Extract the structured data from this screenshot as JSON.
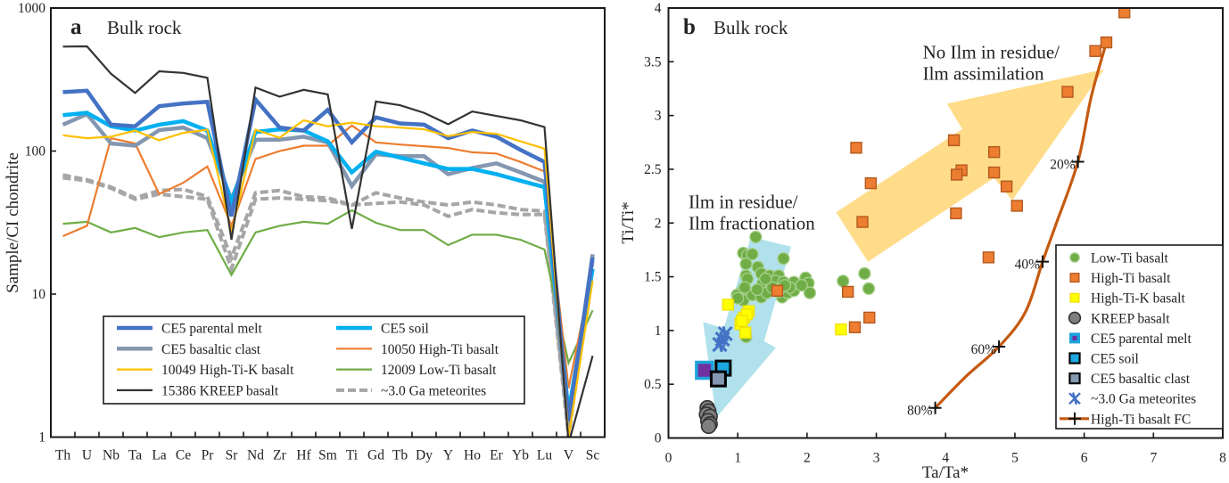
{
  "chart_data": [
    {
      "type": "line",
      "panel_label": "a",
      "title": "Bulk rock",
      "xlabel": "",
      "ylabel": "Sample/CI chondrite",
      "yscale": "log",
      "ylim": [
        1,
        1000
      ],
      "yticks": [
        1,
        10,
        100,
        1000
      ],
      "ytick_labels": [
        "1",
        "10",
        "100",
        "1000"
      ],
      "grid": false,
      "legend_position": "bottom-center",
      "categories": [
        "Th",
        "U",
        "Nb",
        "Ta",
        "La",
        "Ce",
        "Pr",
        "Sr",
        "Nd",
        "Zr",
        "Hf",
        "Sm",
        "Ti",
        "Gd",
        "Tb",
        "Dy",
        "Y",
        "Ho",
        "Er",
        "Yb",
        "Lu",
        "V",
        "Sc"
      ],
      "series": [
        {
          "name": "CE5 parental melt",
          "color": "#4472C4",
          "line": "thick",
          "values": [
            258,
            264,
            153,
            149,
            206,
            215,
            221,
            35,
            229,
            146,
            139,
            194,
            115,
            172,
            156,
            153,
            123,
            139,
            126,
            102,
            84,
            1.3,
            18
          ]
        },
        {
          "name": "CE5 soil",
          "color": "#00B0F0",
          "line": "thick",
          "values": [
            178,
            185,
            149,
            139,
            153,
            162,
            139,
            44,
            136,
            142,
            139,
            117,
            71,
            99,
            90,
            82,
            75,
            75,
            69,
            62,
            56,
            1.5,
            15
          ]
        },
        {
          "name": "CE5 basaltic clast",
          "color": "#8497B0",
          "line": "thick",
          "values": [
            153,
            181,
            113,
            109,
            140,
            146,
            123,
            46,
            120,
            120,
            126,
            115,
            57,
            95,
            92,
            92,
            69,
            76,
            82,
            71,
            61,
            1.2,
            19
          ]
        },
        {
          "name": "10050 High-Ti basalt",
          "color": "#ED7D31",
          "line": "thin",
          "values": [
            25.4,
            30,
            123,
            113,
            50,
            60,
            78,
            30,
            88,
            100,
            109,
            109,
            151,
            115,
            111,
            108,
            105,
            98,
            96,
            84,
            72,
            2.2,
            15
          ]
        },
        {
          "name": "10049 High-Ti-K basalt",
          "color": "#FFC000",
          "line": "thin",
          "values": [
            129,
            123,
            126,
            139,
            119,
            134,
            141,
            27,
            141,
            124,
            164,
            149,
            158,
            149,
            146,
            142,
            127,
            136,
            132,
            117,
            104,
            1.0,
            12.4
          ]
        },
        {
          "name": "12009 Low-Ti basalt",
          "color": "#70AD47",
          "line": "thin",
          "values": [
            31,
            32,
            27,
            29,
            25,
            27,
            28,
            13.6,
            27,
            30,
            32,
            31,
            38.5,
            31.5,
            28,
            28,
            22,
            26,
            26,
            24,
            20.5,
            3.3,
            7.7
          ]
        },
        {
          "name": "15386 KREEP basalt",
          "color": "#333333",
          "line": "thin",
          "values": [
            537,
            540,
            347,
            255,
            361,
            352,
            325,
            24,
            278,
            240,
            268,
            249,
            28.6,
            222,
            209,
            185,
            154,
            189,
            176,
            164,
            147,
            0.9,
            3.7
          ]
        },
        {
          "name": "~3.0 Ga meteorites",
          "color": "#A6A6A6",
          "line": "dashed",
          "values": [
            68,
            63,
            56,
            47,
            53,
            54,
            48,
            18,
            51,
            53,
            48,
            47,
            42,
            51,
            47,
            44,
            42,
            44,
            42,
            39,
            38,
            1.1,
            18
          ]
        },
        {
          "name": "~3.0 Ga meteorites",
          "color": "#A6A6A6",
          "line": "dashed",
          "in_legend": false,
          "values": [
            65,
            62,
            55,
            46,
            50,
            48,
            46,
            15,
            46,
            47,
            46,
            45,
            42,
            43,
            44,
            42,
            35,
            39,
            37,
            36,
            36,
            1.0,
            17
          ]
        }
      ]
    },
    {
      "type": "scatter",
      "panel_label": "b",
      "title": "Bulk rock",
      "xlabel": "Ta/Ta*",
      "ylabel": "Ti/Ti*",
      "xlim": [
        0,
        8
      ],
      "ylim": [
        0,
        4
      ],
      "xticks": [
        0,
        1,
        2,
        3,
        4,
        5,
        6,
        7,
        8
      ],
      "xtick_labels": [
        "0",
        "1",
        "2",
        "3",
        "4",
        "5",
        "6",
        "7",
        "8"
      ],
      "yticks": [
        0,
        0.5,
        1,
        1.5,
        2,
        2.5,
        3,
        3.5,
        4
      ],
      "ytick_labels": [
        "0",
        "0.5",
        "1",
        "1.5",
        "2",
        "2.5",
        "3",
        "3.5",
        "4"
      ],
      "grid": false,
      "legend_position": "bottom-right",
      "series": [
        {
          "name": "Low-Ti basalt",
          "marker": "circle",
          "fill": "#70AD47",
          "edge": "#A9D18E",
          "points": [
            [
              1.26,
              1.87
            ],
            [
              1.08,
              1.72
            ],
            [
              1.14,
              1.7
            ],
            [
              1.21,
              1.71
            ],
            [
              1.66,
              1.67
            ],
            [
              1.12,
              1.62
            ],
            [
              1.29,
              1.59
            ],
            [
              1.34,
              1.53
            ],
            [
              1.12,
              1.51
            ],
            [
              1.14,
              1.48
            ],
            [
              1.46,
              1.51
            ],
            [
              1.59,
              1.51
            ],
            [
              1.36,
              1.44
            ],
            [
              1.46,
              1.45
            ],
            [
              1.55,
              1.46
            ],
            [
              1.66,
              1.45
            ],
            [
              1.81,
              1.45
            ],
            [
              1.98,
              1.49
            ],
            [
              2.02,
              1.44
            ],
            [
              1.04,
              1.35
            ],
            [
              0.99,
              1.33
            ],
            [
              1.08,
              1.28
            ],
            [
              1.21,
              1.33
            ],
            [
              1.34,
              1.31
            ],
            [
              1.42,
              1.35
            ],
            [
              1.64,
              1.31
            ],
            [
              1.72,
              1.35
            ],
            [
              1.81,
              1.37
            ],
            [
              2.04,
              1.35
            ],
            [
              1.1,
              1.4
            ],
            [
              1.5,
              1.4
            ],
            [
              1.75,
              1.4
            ],
            [
              1.28,
              1.38
            ],
            [
              1.58,
              1.36
            ],
            [
              1.0,
              1.3
            ],
            [
              1.68,
              1.42
            ],
            [
              1.92,
              1.42
            ],
            [
              1.4,
              1.48
            ],
            [
              1.12,
              0.94
            ],
            [
              2.83,
              1.53
            ],
            [
              2.52,
              1.46
            ],
            [
              2.89,
              1.39
            ]
          ]
        },
        {
          "name": "High-Ti basalt",
          "marker": "square",
          "fill": "#ED7D31",
          "edge": "#B45A1E",
          "points": [
            [
              6.58,
              3.96
            ],
            [
              6.32,
              3.68
            ],
            [
              6.16,
              3.6
            ],
            [
              5.76,
              3.22
            ],
            [
              4.12,
              2.77
            ],
            [
              4.7,
              2.66
            ],
            [
              4.23,
              2.49
            ],
            [
              4.16,
              2.45
            ],
            [
              4.7,
              2.47
            ],
            [
              4.88,
              2.34
            ],
            [
              5.03,
              2.16
            ],
            [
              4.15,
              2.09
            ],
            [
              2.71,
              2.7
            ],
            [
              2.92,
              2.37
            ],
            [
              2.8,
              2.01
            ],
            [
              4.62,
              1.68
            ],
            [
              2.59,
              1.36
            ],
            [
              2.9,
              1.12
            ],
            [
              2.69,
              1.03
            ],
            [
              1.57,
              1.37
            ]
          ]
        },
        {
          "name": "High-Ti-K basalt",
          "marker": "square",
          "fill": "#FFFF00",
          "edge": "#F2E200",
          "points": [
            [
              0.86,
              1.24
            ],
            [
              1.16,
              1.18
            ],
            [
              1.09,
              1.12
            ],
            [
              1.04,
              1.06
            ],
            [
              1.11,
              0.98
            ],
            [
              1.13,
              1.15
            ],
            [
              1.06,
              1.09
            ],
            [
              2.49,
              1.01
            ]
          ]
        },
        {
          "name": "KREEP basalt",
          "marker": "circle-large",
          "fill": "#7F7F7F",
          "edge": "#333333",
          "points": [
            [
              0.56,
              0.28
            ],
            [
              0.58,
              0.25
            ],
            [
              0.55,
              0.22
            ],
            [
              0.6,
              0.2
            ],
            [
              0.57,
              0.16
            ],
            [
              0.6,
              0.13
            ],
            [
              0.58,
              0.11
            ]
          ]
        },
        {
          "name": "CE5 parental melt",
          "marker": "square-large",
          "fill": "#7030A0",
          "edge": "#1CA4DC",
          "points": [
            [
              0.52,
              0.63
            ]
          ]
        },
        {
          "name": "CE5 soil",
          "marker": "square-outlined",
          "fill": "#1CA7E0",
          "edge": "#000000",
          "points": [
            [
              0.79,
              0.65
            ]
          ]
        },
        {
          "name": "CE5 basaltic clast",
          "marker": "square-outlined",
          "fill": "#8497B0",
          "edge": "#000000",
          "points": [
            [
              0.72,
              0.55
            ]
          ]
        },
        {
          "name": "~3.0 Ga meteorites",
          "marker": "x",
          "fill": "#4472C4",
          "edge": "#4472C4",
          "points": [
            [
              0.82,
              0.97
            ],
            [
              0.78,
              0.92
            ],
            [
              0.74,
              0.87
            ]
          ]
        }
      ],
      "fc_curve": {
        "name": "High-Ti basalt FC",
        "color": "#C55A11",
        "points": [
          [
            3.85,
            0.28
          ],
          [
            4.29,
            0.57
          ],
          [
            4.77,
            0.85
          ],
          [
            5.15,
            1.17
          ],
          [
            5.4,
            1.64
          ],
          [
            5.6,
            2.0
          ],
          [
            5.91,
            2.57
          ],
          [
            6.1,
            3.17
          ],
          [
            6.32,
            3.68
          ]
        ],
        "labeled_points": [
          {
            "label": "20%",
            "x": 5.91,
            "y": 2.57
          },
          {
            "label": "40%",
            "x": 5.4,
            "y": 1.64
          },
          {
            "label": "60%",
            "x": 4.77,
            "y": 0.85
          },
          {
            "label": "80%",
            "x": 3.85,
            "y": 0.28
          }
        ]
      },
      "annotations": [
        {
          "type": "arrow",
          "name": "ilm-fractionation-arrow",
          "color": "#A9DEEA",
          "polygon": [
            [
              1.19,
              1.87
            ],
            [
              1.77,
              1.78
            ],
            [
              1.38,
              0.9
            ],
            [
              1.55,
              0.84
            ],
            [
              0.69,
              0.19
            ],
            [
              0.5,
              1.08
            ],
            [
              0.8,
              1.02
            ]
          ]
        },
        {
          "type": "arrow",
          "name": "ilm-assimilation-arrow",
          "color": "#FFD97F",
          "polygon": [
            [
              2.42,
              2.1
            ],
            [
              4.24,
              2.875
            ],
            [
              4.02,
              3.11
            ],
            [
              6.29,
              3.43
            ],
            [
              4.96,
              2.21
            ],
            [
              4.7,
              2.42
            ],
            [
              2.88,
              1.64
            ]
          ]
        },
        {
          "type": "text",
          "name": "ilm-fractionation-label",
          "lines": [
            "Ilm in residue/",
            "Ilm fractionation"
          ],
          "x": 0.29,
          "y": 2.14
        },
        {
          "type": "text",
          "name": "ilm-assimilation-label",
          "lines": [
            "No Ilm in residue/",
            "Ilm assimilation"
          ],
          "x": 3.67,
          "y": 3.53
        }
      ]
    }
  ]
}
